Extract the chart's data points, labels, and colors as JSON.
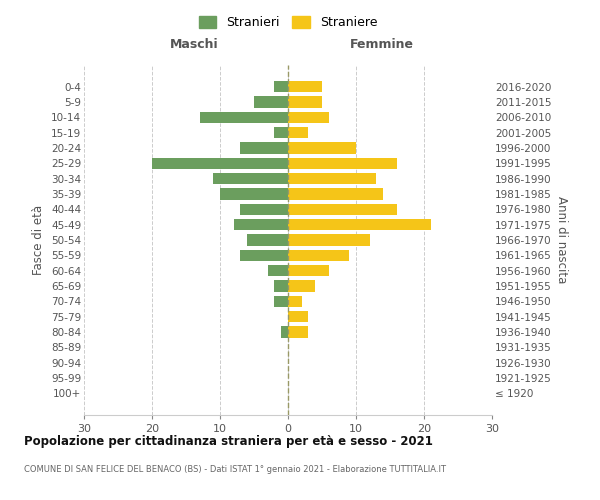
{
  "age_groups": [
    "0-4",
    "5-9",
    "10-14",
    "15-19",
    "20-24",
    "25-29",
    "30-34",
    "35-39",
    "40-44",
    "45-49",
    "50-54",
    "55-59",
    "60-64",
    "65-69",
    "70-74",
    "75-79",
    "80-84",
    "85-89",
    "90-94",
    "95-99",
    "100+"
  ],
  "birth_years": [
    "2016-2020",
    "2011-2015",
    "2006-2010",
    "2001-2005",
    "1996-2000",
    "1991-1995",
    "1986-1990",
    "1981-1985",
    "1976-1980",
    "1971-1975",
    "1966-1970",
    "1961-1965",
    "1956-1960",
    "1951-1955",
    "1946-1950",
    "1941-1945",
    "1936-1940",
    "1931-1935",
    "1926-1930",
    "1921-1925",
    "≤ 1920"
  ],
  "maschi": [
    2,
    5,
    13,
    2,
    7,
    20,
    11,
    10,
    7,
    8,
    6,
    7,
    3,
    2,
    2,
    0,
    1,
    0,
    0,
    0,
    0
  ],
  "femmine": [
    5,
    5,
    6,
    3,
    10,
    16,
    13,
    14,
    16,
    21,
    12,
    9,
    6,
    4,
    2,
    3,
    3,
    0,
    0,
    0,
    0
  ],
  "maschi_color": "#6B9E5E",
  "femmine_color": "#F5C518",
  "background_color": "#FFFFFF",
  "grid_color": "#CCCCCC",
  "title": "Popolazione per cittadinanza straniera per età e sesso - 2021",
  "subtitle": "COMUNE DI SAN FELICE DEL BENACO (BS) - Dati ISTAT 1° gennaio 2021 - Elaborazione TUTTITALIA.IT",
  "left_header": "Maschi",
  "right_header": "Femmine",
  "ylabel_left": "Fasce di età",
  "ylabel_right": "Anni di nascita",
  "legend_maschi": "Stranieri",
  "legend_femmine": "Straniere",
  "xlim": 30
}
